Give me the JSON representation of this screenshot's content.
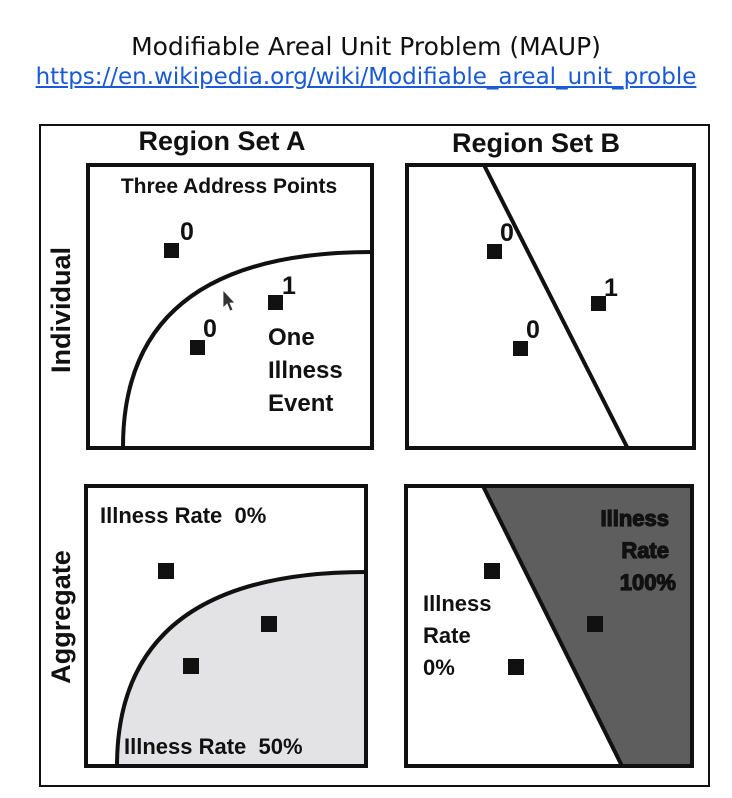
{
  "header": {
    "title": "Modifiable Areal Unit Problem (MAUP)",
    "link": "https://en.wikipedia.org/wiki/Modifiable_areal_unit_proble"
  },
  "columns": [
    "Region Set A",
    "Region Set B"
  ],
  "rows": [
    "Individual",
    "Aggregate"
  ],
  "panels": {
    "a_individual": {
      "caption": "Three Address Points",
      "values": [
        "0",
        "1",
        "0"
      ],
      "event_lines": [
        "One",
        "Illness",
        "Event"
      ]
    },
    "b_individual": {
      "values": [
        "0",
        "1",
        "0"
      ]
    },
    "a_aggregate": {
      "rate_outside": "Illness Rate  0%",
      "rate_inside": "Illness Rate  50%"
    },
    "b_aggregate": {
      "left_lines": [
        "Illness",
        "Rate",
        "0%"
      ],
      "right_lines": [
        "Illness",
        "Rate",
        "100%"
      ]
    }
  },
  "colors": {
    "light_fill": "#e3e3e6",
    "dark_fill": "#5e5e5e",
    "link": "#1a5ad6"
  }
}
